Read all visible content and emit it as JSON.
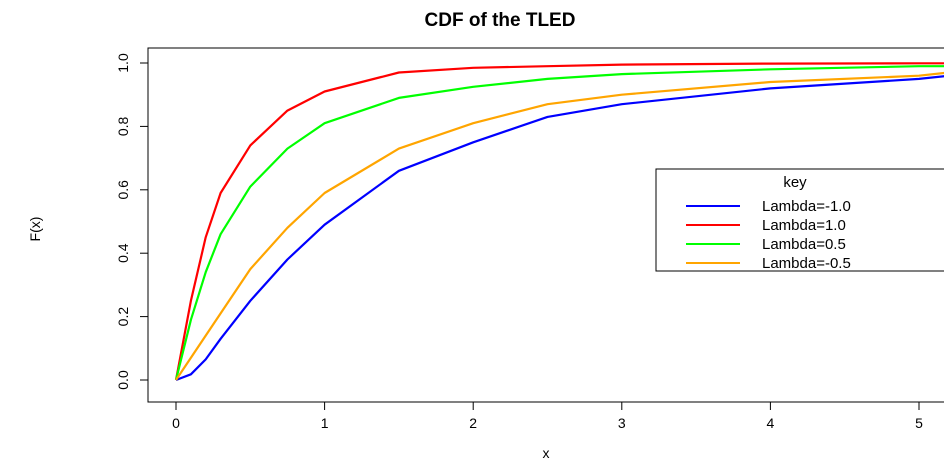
{
  "chart_data": {
    "type": "line",
    "title": "CDF of the TLED",
    "xlabel": "x",
    "ylabel": "F(x)",
    "xlim": [
      0,
      5.2
    ],
    "ylim": [
      0,
      1.0
    ],
    "xticks": [
      0,
      1,
      2,
      3,
      4,
      5
    ],
    "xtick_labels": [
      "0",
      "1",
      "2",
      "3",
      "4",
      "5"
    ],
    "yticks": [
      0,
      0.2,
      0.4,
      0.6,
      0.8,
      1.0
    ],
    "ytick_labels": [
      "0.0",
      "0.2",
      "0.4",
      "0.6",
      "0.8",
      "1.0"
    ],
    "grid": false,
    "legend": {
      "title": "key",
      "position": "right"
    },
    "series": [
      {
        "name": "Lambda=-1.0",
        "color": "#0000ff",
        "x": [
          0,
          0.1,
          0.2,
          0.3,
          0.5,
          0.75,
          1.0,
          1.5,
          2.0,
          2.5,
          3.0,
          4.0,
          5.0,
          5.2
        ],
        "y": [
          0.0,
          0.018,
          0.065,
          0.13,
          0.25,
          0.38,
          0.49,
          0.66,
          0.75,
          0.83,
          0.87,
          0.92,
          0.95,
          0.96
        ]
      },
      {
        "name": "Lambda=1.0",
        "color": "#ff0000",
        "x": [
          0,
          0.1,
          0.2,
          0.3,
          0.5,
          0.75,
          1.0,
          1.5,
          2.0,
          2.5,
          3.0,
          4.0,
          5.0,
          5.2
        ],
        "y": [
          0.0,
          0.25,
          0.45,
          0.59,
          0.74,
          0.85,
          0.91,
          0.97,
          0.985,
          0.99,
          0.995,
          0.998,
          0.999,
          0.999
        ]
      },
      {
        "name": "Lambda=0.5",
        "color": "#00ff00",
        "x": [
          0,
          0.1,
          0.2,
          0.3,
          0.5,
          0.75,
          1.0,
          1.5,
          2.0,
          2.5,
          3.0,
          4.0,
          5.0,
          5.2
        ],
        "y": [
          0.0,
          0.19,
          0.34,
          0.46,
          0.61,
          0.73,
          0.81,
          0.89,
          0.925,
          0.95,
          0.965,
          0.98,
          0.99,
          0.99
        ]
      },
      {
        "name": "Lambda=-0.5",
        "color": "#ffa500",
        "x": [
          0,
          0.1,
          0.2,
          0.3,
          0.5,
          0.75,
          1.0,
          1.5,
          2.0,
          2.5,
          3.0,
          4.0,
          5.0,
          5.2
        ],
        "y": [
          0.0,
          0.07,
          0.14,
          0.21,
          0.35,
          0.48,
          0.59,
          0.73,
          0.81,
          0.87,
          0.9,
          0.94,
          0.96,
          0.97
        ]
      }
    ]
  }
}
